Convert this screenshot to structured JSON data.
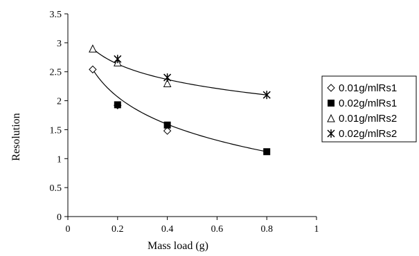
{
  "chart_data": {
    "type": "scatter",
    "title": "",
    "xlabel": "Mass load (g)",
    "ylabel": "Resolution",
    "xlim": [
      0,
      1
    ],
    "ylim": [
      0,
      3.5
    ],
    "xticks": [
      "0",
      "0.2",
      "0.4",
      "0.6",
      "0.8",
      "1"
    ],
    "yticks": [
      "0",
      "0.5",
      "1",
      "1.5",
      "2",
      "2.5",
      "3",
      "3.5"
    ],
    "grid": false,
    "legend_position": "right",
    "series": [
      {
        "name": "0.01g/mlRs1",
        "marker": "diamond-open",
        "x": [
          0.1,
          0.2,
          0.4
        ],
        "y": [
          2.54,
          1.92,
          1.48
        ]
      },
      {
        "name": "0.02g/mlRs1",
        "marker": "square-filled",
        "x": [
          0.2,
          0.4,
          0.8
        ],
        "y": [
          1.93,
          1.58,
          1.12
        ]
      },
      {
        "name": "0.01g/mlRs2",
        "marker": "triangle-open",
        "x": [
          0.1,
          0.2,
          0.4
        ],
        "y": [
          2.9,
          2.66,
          2.3
        ]
      },
      {
        "name": "0.02g/mlRs2",
        "marker": "asterisk",
        "x": [
          0.2,
          0.4,
          0.8
        ],
        "y": [
          2.72,
          2.4,
          2.1
        ]
      }
    ],
    "trendlines": [
      {
        "x": [
          0.1,
          0.8
        ],
        "y": [
          2.54,
          1.12
        ]
      },
      {
        "x": [
          0.1,
          0.8
        ],
        "y": [
          2.9,
          2.1
        ]
      }
    ]
  }
}
